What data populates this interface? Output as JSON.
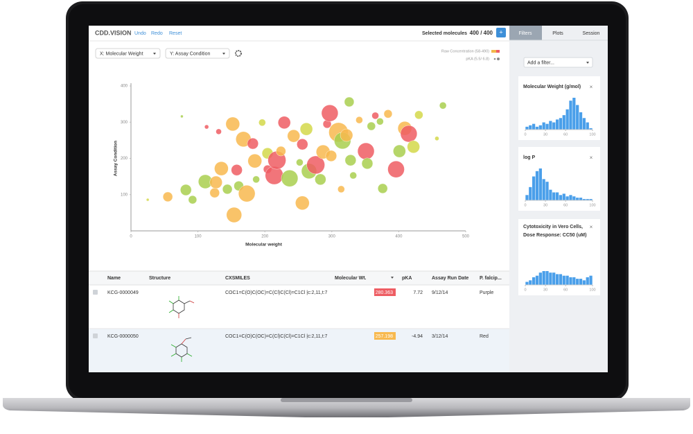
{
  "header": {
    "logo": "CDD.VISION",
    "undo": "Undo",
    "redo": "Redo",
    "reset": "Reset",
    "selected_label": "Selected molecules",
    "selected_count": "400 / 400",
    "add_button": "+"
  },
  "tabs": [
    "Filters",
    "Plots",
    "Session"
  ],
  "plot_controls": {
    "x_select": "X: Molecular Weight",
    "y_select": "Y: Assay Condition"
  },
  "add_filter": "Add a filter...",
  "chart_data": [
    {
      "type": "scatter",
      "x_label": "Molecular weight",
      "y_label": "Assay Condition",
      "legend": [
        "Raw Concentration (58-490)",
        "pKA (5.5/ 6.8)"
      ],
      "x": [
        25,
        55,
        76,
        82,
        92,
        111,
        113,
        125,
        127,
        135,
        131,
        144,
        152,
        154,
        158,
        161,
        168,
        173,
        182,
        185,
        187,
        196,
        204,
        204,
        214,
        218,
        224,
        229,
        237,
        243,
        252,
        256,
        256,
        262,
        266,
        276,
        283,
        287,
        293,
        297,
        299,
        310,
        314,
        316,
        322,
        326,
        328,
        332,
        341,
        351,
        353,
        359,
        365,
        372,
        376,
        384,
        396,
        401,
        409,
        415,
        422,
        430,
        457,
        466
      ],
      "y": [
        86,
        94,
        316,
        113,
        86,
        136,
        287,
        105,
        134,
        172,
        274,
        115,
        295,
        44,
        168,
        124,
        253,
        103,
        241,
        193,
        142,
        299,
        214,
        170,
        153,
        195,
        220,
        299,
        145,
        262,
        189,
        77,
        239,
        281,
        165,
        182,
        142,
        218,
        295,
        325,
        207,
        272,
        115,
        249,
        264,
        356,
        195,
        153,
        306,
        220,
        186,
        289,
        318,
        302,
        117,
        323,
        170,
        220,
        283,
        268,
        232,
        320,
        255,
        346
      ],
      "sizes": [
        2,
        7,
        2,
        8,
        6,
        10,
        3,
        7,
        9,
        10,
        4,
        7,
        10,
        11,
        8,
        7,
        11,
        12,
        8,
        10,
        5,
        5,
        8,
        6,
        13,
        13,
        7,
        9,
        12,
        9,
        5,
        10,
        8,
        9,
        11,
        13,
        8,
        10,
        6,
        12,
        8,
        14,
        5,
        12,
        9,
        7,
        8,
        5,
        5,
        12,
        8,
        6,
        5,
        5,
        7,
        6,
        12,
        9,
        10,
        12,
        9,
        6,
        3,
        5
      ],
      "colors": [
        "#d4d84a",
        "#f8b94f",
        "#a9cf4f",
        "#a9cf4f",
        "#a9cf4f",
        "#a9cf4f",
        "#ee5d63",
        "#f8b94f",
        "#f8b94f",
        "#f8b94f",
        "#ee5d63",
        "#a9cf4f",
        "#f8b94f",
        "#f8b94f",
        "#ee5d63",
        "#a9cf4f",
        "#f8b94f",
        "#f8b94f",
        "#ee5d63",
        "#f8b94f",
        "#a9cf4f",
        "#d4d84a",
        "#d4d84a",
        "#ee5d63",
        "#ee5d63",
        "#ee5d63",
        "#f8b94f",
        "#ee5d63",
        "#a9cf4f",
        "#f8b94f",
        "#a9cf4f",
        "#f8b94f",
        "#ee5d63",
        "#d4d84a",
        "#a9cf4f",
        "#ee5d63",
        "#a9cf4f",
        "#f8b94f",
        "#ee5d63",
        "#ee5d63",
        "#f8b94f",
        "#f8b94f",
        "#f8b94f",
        "#a9cf4f",
        "#f8b94f",
        "#a9cf4f",
        "#a9cf4f",
        "#a9cf4f",
        "#f8b94f",
        "#ee5d63",
        "#a9cf4f",
        "#a9cf4f",
        "#ee5d63",
        "#a9cf4f",
        "#a9cf4f",
        "#f8b94f",
        "#ee5d63",
        "#a9cf4f",
        "#f8b94f",
        "#ee5d63",
        "#d4d84a",
        "#d4d84a",
        "#d4d84a",
        "#a9cf4f"
      ],
      "xlim": [
        0,
        500
      ],
      "ylim": [
        0,
        400
      ],
      "xticks": [
        0,
        100,
        200,
        300,
        400,
        500
      ],
      "yticks": [
        100,
        200,
        300,
        400
      ]
    },
    {
      "type": "histogram",
      "title": "Molecular Weight (g/mol)",
      "close": "×",
      "color": "#4a9fea",
      "bins": [
        0,
        5,
        10,
        15,
        20,
        25,
        30,
        35,
        40,
        45,
        50,
        55,
        60,
        65,
        70,
        75,
        80,
        85,
        90,
        95,
        100
      ],
      "values": [
        2,
        3,
        4,
        2,
        3,
        5,
        4,
        6,
        5,
        7,
        8,
        10,
        14,
        20,
        22,
        17,
        12,
        8,
        5,
        1
      ],
      "xlim": [
        0,
        100
      ],
      "xticks": [
        0,
        30,
        60,
        100
      ]
    },
    {
      "type": "histogram",
      "title": "log P",
      "close": "×",
      "color": "#4a9fea",
      "bins": [
        0,
        5,
        10,
        15,
        20,
        25,
        30,
        35,
        40,
        45,
        50,
        55,
        60,
        65,
        70,
        75,
        80,
        85,
        90,
        95,
        100
      ],
      "values": [
        4,
        10,
        18,
        22,
        24,
        16,
        14,
        8,
        6,
        6,
        4,
        5,
        3,
        4,
        3,
        2,
        2,
        1,
        1,
        1
      ],
      "xlim": [
        0,
        100
      ],
      "xticks": [
        0,
        30,
        60,
        100
      ]
    },
    {
      "type": "histogram",
      "title": "Cytotoxicity in Vero Cells, Dose Response: CC50 (uM)",
      "close": "×",
      "color": "#4a9fea",
      "bins": [
        0,
        5,
        10,
        15,
        20,
        25,
        30,
        35,
        40,
        45,
        50,
        55,
        60,
        65,
        70,
        75,
        80,
        85,
        90,
        95,
        100
      ],
      "values": [
        2,
        3,
        5,
        6,
        8,
        9,
        9,
        8,
        8,
        7,
        7,
        6,
        6,
        5,
        5,
        4,
        4,
        3,
        5,
        6
      ],
      "xlim": [
        0,
        100
      ],
      "xticks": [
        0,
        30,
        60,
        100
      ]
    }
  ],
  "table": {
    "columns": [
      "Name",
      "Structure",
      "CXSMILES",
      "Molecular Wt.",
      "pKA",
      "Assay Run Date",
      "P. falcip..."
    ],
    "rows": [
      [
        "KCG-0000049",
        "COC1=C(O)C(OC)=C(Cl)C(Cl)=C1Cl |c:2,11,t:7|",
        280.363,
        7.72,
        "9/12/14",
        "Purple"
      ],
      [
        "KCG-0000050",
        "COC1=C(O)C(OC)=C(Cl)C(Cl)=C1Cl |c:2,11,t:7|",
        257.198,
        -4.94,
        "3/12/14",
        "Red"
      ]
    ]
  }
}
